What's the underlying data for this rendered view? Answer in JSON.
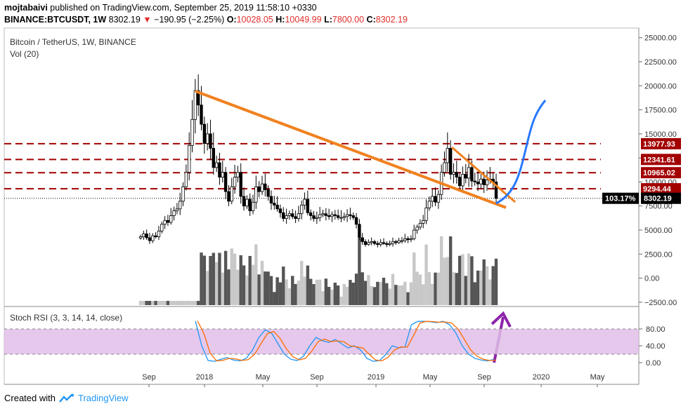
{
  "header": {
    "line1_author": "mojtabaivi",
    "line1_rest": " published on TradingView.com, September 25, 2019 11:58:10 +0330",
    "symbol": "BINANCE:BTCUSDT, 1W",
    "last": "8302.19",
    "change": "−190.95 (−2.25%)",
    "o_label": "O:",
    "o": "10028.05",
    "h_label": "H:",
    "h": "10049.99",
    "l_label": "L:",
    "l": "7800.00",
    "c_label": "C:",
    "c": "8302.19"
  },
  "chart_data": {
    "type": "candlestick",
    "title": "Bitcoin / TetherUS, 1W, BINANCE",
    "volume_label": "Vol (20)",
    "indicator_label": "Stoch RSI (3, 3, 14, 14, close)",
    "y_ticks": [
      25000,
      22500,
      20000,
      17500,
      15000,
      12500,
      10000,
      7500,
      5000,
      2500,
      0,
      -2500
    ],
    "y_tick_labels": [
      "25000.00",
      "22500.00",
      "20000.00",
      "17500.00",
      "15000.00",
      "12500.00",
      "10000.00",
      "7500.00",
      "5000.00",
      "2500.00",
      "0.00",
      "−2500.00"
    ],
    "ylim": [
      -2800,
      26000
    ],
    "x_tick_labels": [
      "Sep",
      "2018",
      "May",
      "Sep",
      "2019",
      "May",
      "Sep",
      "2020",
      "May"
    ],
    "rsi_ticks": [
      "80.00",
      "40.00",
      "0.00"
    ],
    "price_levels": [
      {
        "value": 13977.93,
        "label": "13977.93"
      },
      {
        "value": 12341.61,
        "label": "12341.61"
      },
      {
        "value": 10965.02,
        "label": "10965.02"
      },
      {
        "value": 9294.44,
        "label": "9294.44"
      }
    ],
    "current": {
      "value": 8302.19,
      "label": "8302.19",
      "pct": "103.17%"
    },
    "closes": [
      4300,
      4600,
      4200,
      3900,
      4400,
      4300,
      4900,
      5600,
      6000,
      5800,
      6500,
      7000,
      7200,
      8000,
      9500,
      11000,
      13800,
      16500,
      19500,
      18000,
      16000,
      14000,
      15000,
      13500,
      11500,
      12000,
      10500,
      11000,
      9000,
      8000,
      9500,
      10500,
      11000,
      8500,
      7500,
      8200,
      7000,
      7900,
      9500,
      9000,
      9800,
      9200,
      8500,
      7800,
      7600,
      7200,
      6800,
      6200,
      6500,
      6700,
      6400,
      6200,
      6700,
      7600,
      8200,
      6800,
      6500,
      6200,
      6300,
      6600,
      6700,
      6500,
      6400,
      6600,
      6500,
      6300,
      6300,
      6400,
      6600,
      6500,
      6300,
      5600,
      4200,
      3800,
      3500,
      3700,
      3800,
      3600,
      3500,
      3700,
      3600,
      3500,
      3600,
      3800,
      3700,
      3900,
      3900,
      4100,
      4000,
      4100,
      5000,
      5300,
      5700,
      6000,
      7300,
      8000,
      8500,
      7900,
      8700,
      11000,
      12000,
      13500,
      10800,
      11000,
      10500,
      9600,
      10800,
      10400,
      11500,
      10100,
      10000,
      9800,
      10300,
      9700,
      10200,
      10300,
      10000,
      8302
    ]
  },
  "footer": {
    "created": "Created with",
    "brand": "TradingView"
  },
  "colors": {
    "up": "#ffffff",
    "down": "#000000",
    "trend": "#f0811f",
    "arrow": "#8e24aa",
    "projection": "#2979ff",
    "level": "#a30000",
    "rsiBand": "#e1bee7"
  }
}
